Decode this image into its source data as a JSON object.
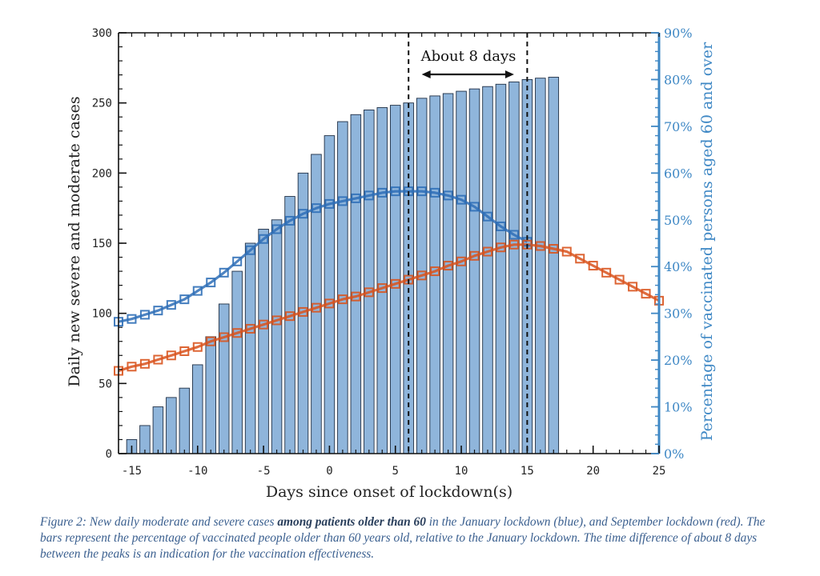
{
  "chart_data": {
    "type": "bar+line",
    "xlabel": "Days since onset of lockdown(s)",
    "ylabel_left": "Daily new severe and moderate cases",
    "ylabel_right": "Percentage of vaccinated persons aged 60 and over",
    "xlim": [
      -16,
      25
    ],
    "ylim_left": [
      0,
      300
    ],
    "ylim_right": [
      0,
      90
    ],
    "x_ticks": [
      -15,
      -10,
      -5,
      0,
      5,
      10,
      15,
      20,
      25
    ],
    "y_ticks_left": [
      0,
      50,
      100,
      150,
      200,
      250,
      300
    ],
    "y_ticks_right": [
      "0%",
      "10%",
      "20%",
      "30%",
      "40%",
      "50%",
      "60%",
      "70%",
      "80%",
      "90%"
    ],
    "bars": {
      "x": [
        -15,
        -14,
        -13,
        -12,
        -11,
        -10,
        -9,
        -8,
        -7,
        -6,
        -5,
        -4,
        -3,
        -2,
        -1,
        0,
        1,
        2,
        3,
        4,
        5,
        6,
        7,
        8,
        9,
        10,
        11,
        12,
        13,
        14,
        15,
        16,
        17
      ],
      "values_percent": [
        3,
        6,
        10,
        12,
        14,
        19,
        25,
        32,
        39,
        45,
        48,
        50,
        55,
        60,
        64,
        68,
        71,
        72.5,
        73.5,
        74,
        74.5,
        75,
        76,
        76.5,
        77,
        77.5,
        78,
        78.5,
        79,
        79.5,
        80,
        80.3,
        80.5
      ]
    },
    "series": [
      {
        "x": [
          -16,
          -15,
          -14,
          -13,
          -12,
          -11,
          -10,
          -9,
          -8,
          -7,
          -6,
          -5,
          -4,
          -3,
          -2,
          -1,
          0,
          1,
          2,
          3,
          4,
          5,
          6,
          7,
          8,
          9,
          10,
          11,
          12,
          13,
          14,
          15
        ],
        "values": [
          94,
          96,
          99,
          102,
          106,
          110,
          116,
          122,
          129,
          137,
          145,
          153,
          160,
          166,
          171,
          175,
          178,
          180,
          182,
          184,
          186,
          187,
          187,
          187,
          186,
          184,
          181,
          176,
          169,
          162,
          156,
          151
        ],
        "color": "#2f6fb7"
      },
      {
        "x": [
          -16,
          -15,
          -14,
          -13,
          -12,
          -11,
          -10,
          -9,
          -8,
          -7,
          -6,
          -5,
          -4,
          -3,
          -2,
          -1,
          0,
          1,
          2,
          3,
          4,
          5,
          6,
          7,
          8,
          9,
          10,
          11,
          12,
          13,
          14,
          15,
          16,
          17,
          18,
          19,
          20,
          21,
          22,
          23,
          24,
          25
        ],
        "values": [
          59,
          62,
          64,
          67,
          70,
          73,
          76,
          80,
          83,
          86,
          89,
          92,
          95,
          98,
          101,
          104,
          107,
          110,
          112,
          115,
          118,
          121,
          124,
          127,
          130,
          134,
          137,
          141,
          144,
          147,
          149,
          149,
          148,
          146,
          144,
          139,
          134,
          129,
          124,
          119,
          114,
          109
        ],
        "color": "#d9541e"
      }
    ],
    "vlines_x": [
      6,
      15
    ],
    "annotation": {
      "text": "About 8 days",
      "arrow_from_x": 7,
      "arrow_to_x": 14
    }
  },
  "caption": {
    "part1": "Figure 2: New daily moderate and severe cases ",
    "part2": "among patients older than 60",
    "part3": " in the January lockdown (blue), and September lockdown (red). The bars represent the percentage of vaccinated people older than 60 years old, relative to the January lockdown. The time difference of about 8 days between the peaks is an indication for the vaccination effectiveness."
  }
}
